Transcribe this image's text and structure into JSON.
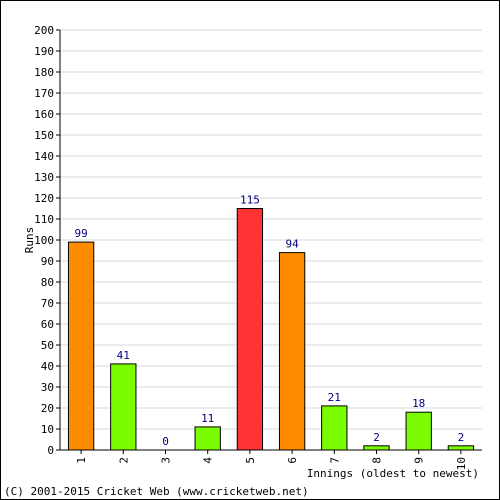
{
  "chart_data": {
    "type": "bar",
    "categories": [
      "1",
      "2",
      "3",
      "4",
      "5",
      "6",
      "7",
      "8",
      "9",
      "10"
    ],
    "values": [
      99,
      41,
      0,
      11,
      115,
      94,
      21,
      2,
      18,
      2
    ],
    "bar_colors": [
      "#ff8c00",
      "#7cfc00",
      "#7cfc00",
      "#7cfc00",
      "#ff3333",
      "#ff8c00",
      "#7cfc00",
      "#7cfc00",
      "#7cfc00",
      "#7cfc00"
    ],
    "data_labels": [
      "99",
      "41",
      "0",
      "11",
      "115",
      "94",
      "21",
      "2",
      "18",
      "2"
    ],
    "title": "",
    "xlabel": "Innings (oldest to newest)",
    "ylabel": "Runs",
    "ylim": [
      0,
      200
    ],
    "ytick_step": 10,
    "grid": true,
    "legend": "none"
  },
  "footer": "(C) 2001-2015 Cricket Web (www.cricketweb.net)"
}
